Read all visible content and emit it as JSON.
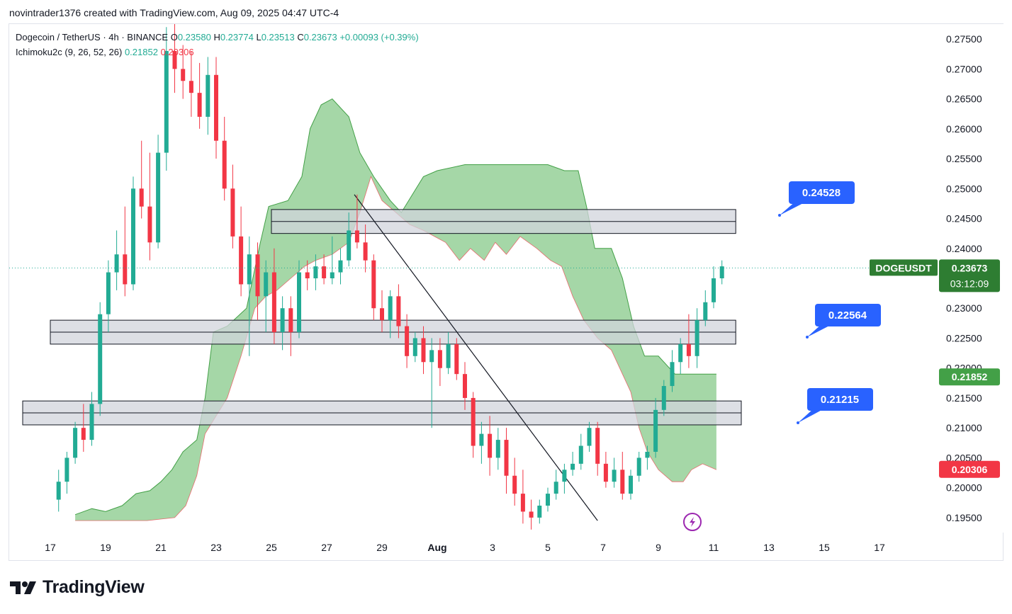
{
  "caption": "novintrader1376 created with TradingView.com, Aug 09, 2025 04:47 UTC-4",
  "legend": {
    "symbol": "Dogecoin / TetherUS · 4h · BINANCE",
    "open_label": "O",
    "open": "0.23580",
    "high_label": "H",
    "high": "0.23774",
    "low_label": "L",
    "low": "0.23513",
    "close_label": "C",
    "close": "0.23673",
    "change": "+0.00093 (+0.39%)",
    "indicator": "Ichimoku2c (9, 26, 52, 26)",
    "indicator_value_1": "0.21852",
    "indicator_value_2": "0.20306"
  },
  "price_tag": {
    "symbol": "DOGEUSDT",
    "price": "0.23673",
    "countdown": "03:12:09"
  },
  "brand": "TradingView",
  "colors": {
    "up": "#22ab94",
    "down": "#f23645",
    "cloud": "#4caf50",
    "callout": "#2962ff",
    "zone_fill": "#d1d4dc",
    "grid_text": "#131722"
  },
  "chart_data": {
    "type": "candlestick",
    "symbol": "DOGEUSDT",
    "timeframe": "4h",
    "ylim": [
      0.1925,
      0.2775
    ],
    "x_ticks": [
      "17",
      "19",
      "21",
      "23",
      "25",
      "27",
      "29",
      "Aug",
      "3",
      "5",
      "7",
      "9",
      "11",
      "13",
      "15",
      "17"
    ],
    "y_ticks": [
      "0.19500",
      "0.20000",
      "0.20500",
      "0.21000",
      "0.21500",
      "0.22000",
      "0.22500",
      "0.23000",
      "0.23500",
      "0.24000",
      "0.24500",
      "0.25000",
      "0.25500",
      "0.26000",
      "0.26500",
      "0.27000",
      "0.27500"
    ],
    "y_tick_values": [
      0.195,
      0.2,
      0.205,
      0.21,
      0.215,
      0.22,
      0.225,
      0.23,
      0.235,
      0.24,
      0.245,
      0.25,
      0.255,
      0.26,
      0.265,
      0.27,
      0.275
    ],
    "last_price": 0.23673,
    "axis_badges": [
      {
        "value": 0.21852,
        "label": "0.21852",
        "color": "#43a047"
      },
      {
        "value": 0.20306,
        "label": "0.20306",
        "color": "#f23645"
      }
    ],
    "candles": [
      [
        17.3,
        0.198,
        0.203,
        0.196,
        0.201
      ],
      [
        17.6,
        0.201,
        0.206,
        0.199,
        0.205
      ],
      [
        17.9,
        0.205,
        0.211,
        0.204,
        0.21
      ],
      [
        18.2,
        0.21,
        0.214,
        0.206,
        0.208
      ],
      [
        18.5,
        0.208,
        0.216,
        0.207,
        0.214
      ],
      [
        18.8,
        0.214,
        0.231,
        0.212,
        0.229
      ],
      [
        19.1,
        0.229,
        0.238,
        0.226,
        0.236
      ],
      [
        19.4,
        0.236,
        0.243,
        0.233,
        0.239
      ],
      [
        19.7,
        0.239,
        0.247,
        0.232,
        0.234
      ],
      [
        20.0,
        0.234,
        0.252,
        0.233,
        0.25
      ],
      [
        20.3,
        0.25,
        0.258,
        0.245,
        0.247
      ],
      [
        20.6,
        0.247,
        0.256,
        0.238,
        0.241
      ],
      [
        20.9,
        0.241,
        0.259,
        0.24,
        0.256
      ],
      [
        21.2,
        0.256,
        0.277,
        0.253,
        0.273
      ],
      [
        21.5,
        0.273,
        0.278,
        0.266,
        0.27
      ],
      [
        21.8,
        0.27,
        0.274,
        0.265,
        0.268
      ],
      [
        22.1,
        0.268,
        0.273,
        0.262,
        0.266
      ],
      [
        22.4,
        0.266,
        0.271,
        0.26,
        0.262
      ],
      [
        22.7,
        0.262,
        0.272,
        0.259,
        0.269
      ],
      [
        23.0,
        0.269,
        0.272,
        0.255,
        0.258
      ],
      [
        23.3,
        0.258,
        0.262,
        0.248,
        0.25
      ],
      [
        23.6,
        0.25,
        0.254,
        0.24,
        0.242
      ],
      [
        23.9,
        0.242,
        0.247,
        0.232,
        0.234
      ],
      [
        24.2,
        0.234,
        0.242,
        0.222,
        0.239
      ],
      [
        24.5,
        0.239,
        0.241,
        0.228,
        0.232
      ],
      [
        24.8,
        0.232,
        0.238,
        0.226,
        0.236
      ],
      [
        25.1,
        0.236,
        0.24,
        0.224,
        0.226
      ],
      [
        25.4,
        0.226,
        0.232,
        0.223,
        0.23
      ],
      [
        25.7,
        0.23,
        0.232,
        0.222,
        0.226
      ],
      [
        26.0,
        0.226,
        0.238,
        0.225,
        0.236
      ],
      [
        26.3,
        0.236,
        0.238,
        0.233,
        0.235
      ],
      [
        26.6,
        0.235,
        0.239,
        0.233,
        0.237
      ],
      [
        26.9,
        0.237,
        0.239,
        0.234,
        0.235
      ],
      [
        27.2,
        0.235,
        0.242,
        0.234,
        0.236
      ],
      [
        27.5,
        0.236,
        0.24,
        0.234,
        0.238
      ],
      [
        27.8,
        0.238,
        0.246,
        0.237,
        0.243
      ],
      [
        28.1,
        0.243,
        0.249,
        0.24,
        0.241
      ],
      [
        28.4,
        0.241,
        0.244,
        0.236,
        0.238
      ],
      [
        28.7,
        0.238,
        0.239,
        0.228,
        0.23
      ],
      [
        29.0,
        0.23,
        0.233,
        0.226,
        0.228
      ],
      [
        29.3,
        0.228,
        0.233,
        0.225,
        0.232
      ],
      [
        29.6,
        0.232,
        0.234,
        0.225,
        0.227
      ],
      [
        29.9,
        0.227,
        0.229,
        0.22,
        0.222
      ],
      [
        30.2,
        0.222,
        0.226,
        0.221,
        0.225
      ],
      [
        30.5,
        0.225,
        0.227,
        0.219,
        0.221
      ],
      [
        30.8,
        0.221,
        0.225,
        0.21,
        0.223
      ],
      [
        31.1,
        0.223,
        0.225,
        0.217,
        0.22
      ],
      [
        31.4,
        0.22,
        0.226,
        0.219,
        0.224
      ],
      [
        31.7,
        0.224,
        0.225,
        0.218,
        0.219
      ],
      [
        32.0,
        0.219,
        0.221,
        0.213,
        0.215
      ],
      [
        32.3,
        0.215,
        0.216,
        0.205,
        0.207
      ],
      [
        32.6,
        0.207,
        0.211,
        0.204,
        0.209
      ],
      [
        32.9,
        0.209,
        0.212,
        0.202,
        0.205
      ],
      [
        33.2,
        0.205,
        0.21,
        0.203,
        0.208
      ],
      [
        33.5,
        0.208,
        0.21,
        0.199,
        0.202
      ],
      [
        33.8,
        0.202,
        0.205,
        0.197,
        0.199
      ],
      [
        34.1,
        0.199,
        0.203,
        0.194,
        0.196
      ],
      [
        34.4,
        0.196,
        0.198,
        0.193,
        0.195
      ],
      [
        34.7,
        0.195,
        0.198,
        0.194,
        0.197
      ],
      [
        35.0,
        0.197,
        0.2,
        0.196,
        0.199
      ],
      [
        35.3,
        0.199,
        0.203,
        0.198,
        0.201
      ],
      [
        35.6,
        0.201,
        0.204,
        0.199,
        0.203
      ],
      [
        35.9,
        0.203,
        0.206,
        0.202,
        0.204
      ],
      [
        36.2,
        0.204,
        0.209,
        0.203,
        0.207
      ],
      [
        36.5,
        0.207,
        0.211,
        0.206,
        0.21
      ],
      [
        36.8,
        0.21,
        0.211,
        0.202,
        0.204
      ],
      [
        37.1,
        0.204,
        0.206,
        0.2,
        0.201
      ],
      [
        37.4,
        0.201,
        0.205,
        0.2,
        0.203
      ],
      [
        37.7,
        0.203,
        0.206,
        0.198,
        0.199
      ],
      [
        38.0,
        0.199,
        0.203,
        0.198,
        0.202
      ],
      [
        38.3,
        0.202,
        0.206,
        0.201,
        0.205
      ],
      [
        38.6,
        0.205,
        0.207,
        0.203,
        0.206
      ],
      [
        38.9,
        0.206,
        0.215,
        0.205,
        0.213
      ],
      [
        39.2,
        0.213,
        0.218,
        0.212,
        0.217
      ],
      [
        39.5,
        0.217,
        0.223,
        0.216,
        0.221
      ],
      [
        39.8,
        0.221,
        0.225,
        0.219,
        0.224
      ],
      [
        40.1,
        0.224,
        0.229,
        0.22,
        0.222
      ],
      [
        40.4,
        0.222,
        0.23,
        0.22,
        0.228
      ],
      [
        40.7,
        0.228,
        0.233,
        0.227,
        0.231
      ],
      [
        41.0,
        0.231,
        0.237,
        0.23,
        0.235
      ],
      [
        41.3,
        0.235,
        0.238,
        0.234,
        0.237
      ]
    ],
    "annotations": [
      {
        "label": "0.24528",
        "value": 0.24528,
        "zone": [
          0.2425,
          0.2465
        ],
        "x_start": 25.0,
        "x_end": 41.8
      },
      {
        "label": "0.22564",
        "value": 0.22564,
        "zone": [
          0.224,
          0.228
        ],
        "x_start": 17.0,
        "x_end": 41.8
      },
      {
        "label": "0.21215",
        "value": 0.21215,
        "zone": [
          0.2105,
          0.2145
        ],
        "x_start": 16.0,
        "x_end": 42.0
      }
    ]
  }
}
